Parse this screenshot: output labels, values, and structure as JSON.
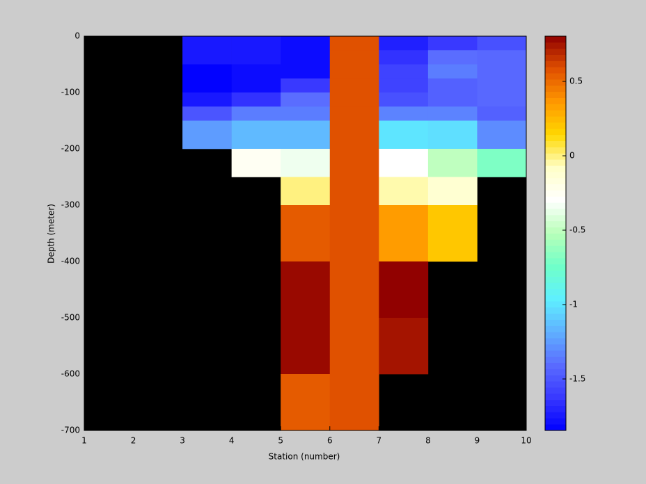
{
  "chart_data": {
    "type": "heatmap",
    "xlabel": "Station (number)",
    "ylabel": "Depth (meter)",
    "x": [
      1,
      2,
      3,
      4,
      5,
      6,
      7,
      8,
      9,
      10
    ],
    "y": [
      0,
      -25,
      -50,
      -75,
      -100,
      -125,
      -150,
      -200,
      -250,
      -300,
      -400,
      -500,
      -600,
      -700
    ],
    "z": [
      [
        null,
        null,
        -1.75,
        -1.75,
        -1.8,
        0.58,
        -1.72,
        -1.62,
        -1.52
      ],
      [
        null,
        null,
        -1.75,
        -1.75,
        -1.8,
        0.58,
        -1.65,
        -1.4,
        -1.42
      ],
      [
        null,
        null,
        -1.84,
        -1.8,
        -1.8,
        0.58,
        -1.58,
        -1.35,
        -1.42
      ],
      [
        null,
        null,
        -1.84,
        -1.8,
        -1.62,
        0.58,
        -1.58,
        -1.45,
        -1.42
      ],
      [
        null,
        null,
        -1.75,
        -1.65,
        -1.4,
        0.58,
        -1.52,
        -1.45,
        -1.42
      ],
      [
        null,
        null,
        -1.5,
        -1.35,
        -1.35,
        0.58,
        -1.33,
        -1.33,
        -1.45
      ],
      [
        null,
        null,
        -1.25,
        -1.15,
        -1.15,
        0.58,
        -1.0,
        -1.02,
        -1.3
      ],
      [
        null,
        null,
        null,
        -0.25,
        -0.35,
        0.58,
        -0.3,
        -0.5,
        -0.7
      ],
      [
        null,
        null,
        null,
        null,
        0.0,
        0.58,
        -0.05,
        -0.12,
        null
      ],
      [
        null,
        null,
        null,
        null,
        0.55,
        0.58,
        0.35,
        0.2,
        null
      ],
      [
        null,
        null,
        null,
        null,
        0.78,
        0.58,
        0.8,
        null,
        null
      ],
      [
        null,
        null,
        null,
        null,
        0.78,
        0.58,
        0.75,
        null,
        null
      ],
      [
        null,
        null,
        null,
        null,
        0.55,
        0.58,
        null,
        null,
        null
      ]
    ],
    "xlim": [
      1,
      10
    ],
    "xticks": [
      1,
      2,
      3,
      4,
      5,
      6,
      7,
      8,
      9,
      10
    ],
    "ylim": [
      -700,
      0
    ],
    "yticks": [
      0,
      -100,
      -200,
      -300,
      -400,
      -500,
      -600,
      -700
    ],
    "clim": [
      -1.846,
      0.804
    ],
    "cticks": [
      0.5,
      0,
      -0.5,
      -1,
      -1.5
    ],
    "colormap": [
      "#0000ff",
      "#3838ff",
      "#5a6cff",
      "#60b0ff",
      "#5ef0ff",
      "#70ffc8",
      "#b8ffb8",
      "#ffffff",
      "#ffffc8",
      "#ffd800",
      "#ff9800",
      "#e05000",
      "#900000"
    ],
    "background": "#000000"
  }
}
